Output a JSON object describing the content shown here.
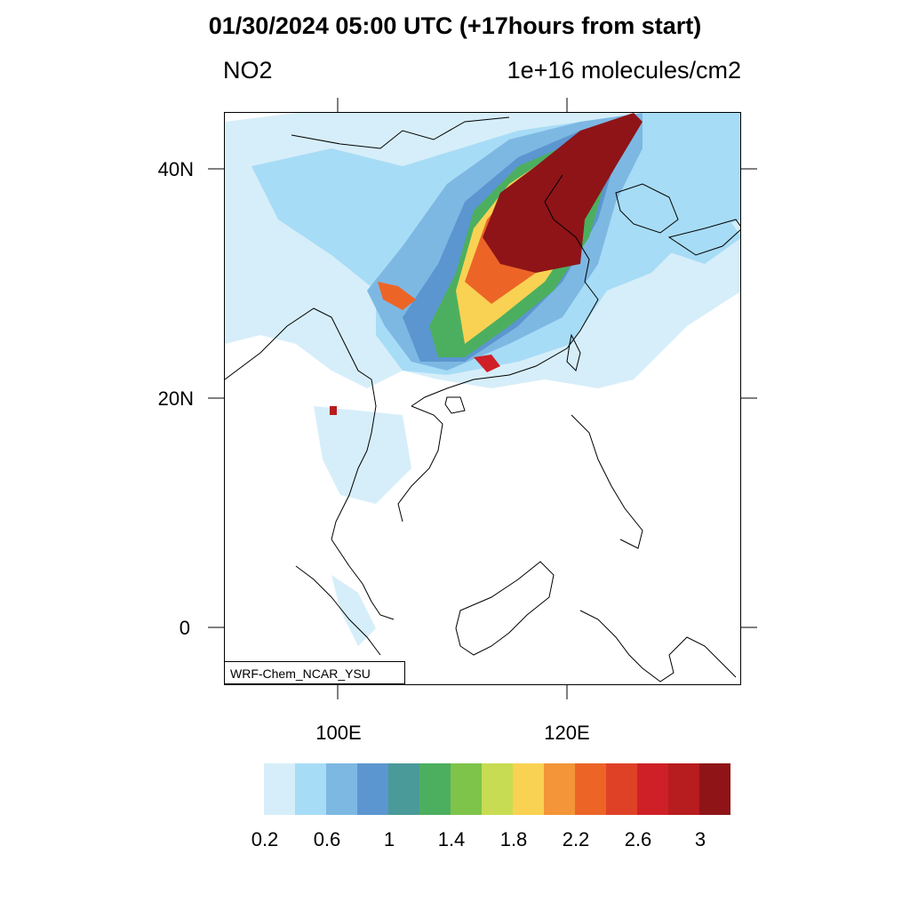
{
  "title": "01/30/2024 05:00 UTC (+17hours from start)",
  "left_title": "NO2",
  "right_title": "1e+16 molecules/cm2",
  "credit": "WRF-Chem_NCAR_YSU",
  "lat_labels": [
    "40N",
    "20N",
    "0"
  ],
  "lon_labels": [
    "100E",
    "120E"
  ],
  "colorbar": {
    "colors": [
      "#d6eef9",
      "#a7dcf6",
      "#7db8e3",
      "#5b96d0",
      "#4a9a99",
      "#4caf5f",
      "#7ec44a",
      "#c7dc52",
      "#f9d253",
      "#f39538",
      "#ec6527",
      "#df4127",
      "#cf2027",
      "#b71c1e",
      "#8e1418"
    ],
    "labels": [
      "0.2",
      "0.6",
      "1",
      "1.4",
      "1.8",
      "2.2",
      "2.6",
      "3"
    ]
  }
}
